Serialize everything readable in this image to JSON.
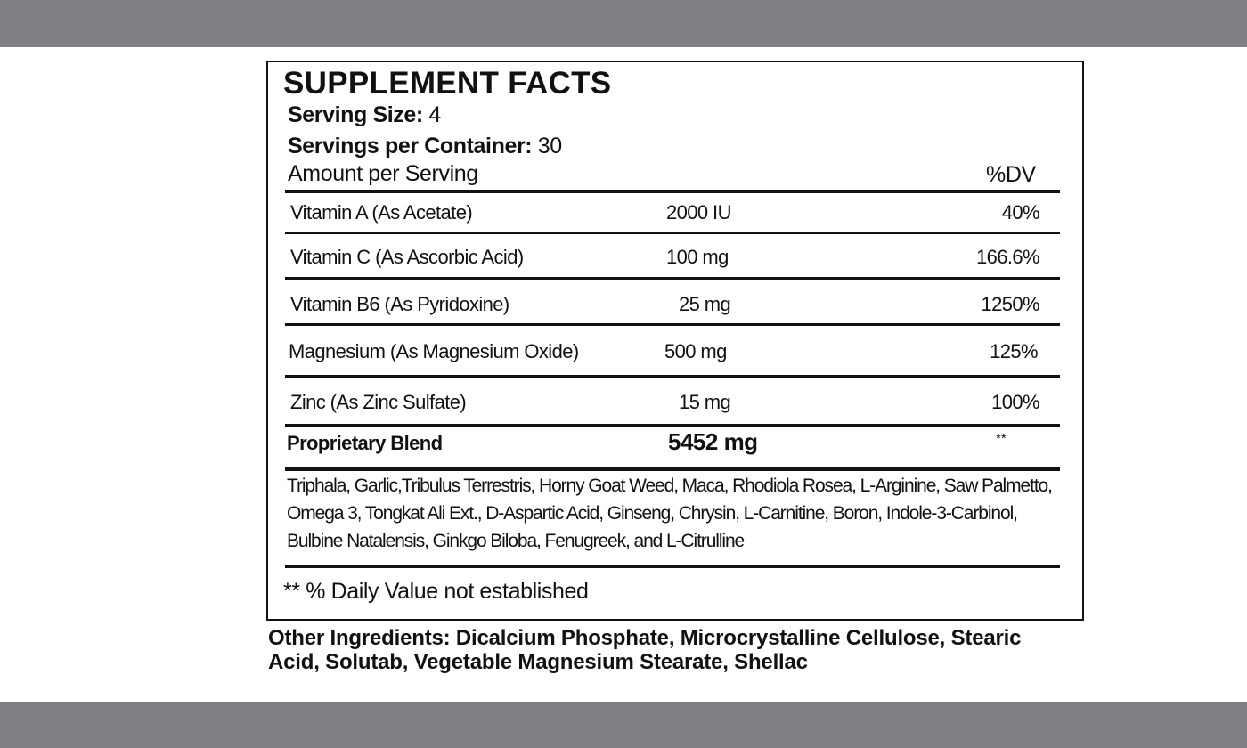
{
  "label": {
    "title": "SUPPLEMENT FACTS",
    "serving_size_label": "Serving Size:",
    "serving_size_value": "4",
    "servings_per_container_label": "Servings per Container:",
    "servings_per_container_value": "30",
    "amount_per_serving": "Amount per Serving",
    "dv_header": "%DV",
    "nutrients": [
      {
        "name": "Vitamin A (As Acetate)",
        "amount": "2000 IU",
        "dv": "40%"
      },
      {
        "name": "Vitamin C (As Ascorbic Acid)",
        "amount": "100 mg",
        "dv": "166.6%"
      },
      {
        "name": "Vitamin B6 (As Pyridoxine)",
        "amount": "25 mg",
        "dv": "1250%"
      },
      {
        "name": "Magnesium (As Magnesium Oxide)",
        "amount": "500 mg",
        "dv": "125%"
      },
      {
        "name": "Zinc (As Zinc Sulfate)",
        "amount": "15 mg",
        "dv": "100%"
      }
    ],
    "blend": {
      "name": "Proprietary Blend",
      "amount": "5452 mg",
      "dv": "**"
    },
    "blend_ingredients": "Triphala, Garlic,Tribulus Terrestris, Horny Goat Weed, Maca, Rhodiola Rosea, L-Arginine, Saw Palmetto, Omega 3, Tongkat Ali Ext., D-Aspartic Acid, Ginseng, Chrysin, L-Carnitine, Boron, Indole-3-Carbinol, Bulbine Natalensis, Ginkgo Biloba, Fenugreek, and L-Citrulline",
    "footnote": "** % Daily Value not established"
  },
  "other_ingredients": "Other Ingredients: Dicalcium Phosphate, Microcrystalline Cellulose, Stearic Acid, Solutab, Vegetable Magnesium Stearate, Shellac",
  "colors": {
    "frame_bar": "#808084",
    "text": "#111111"
  }
}
